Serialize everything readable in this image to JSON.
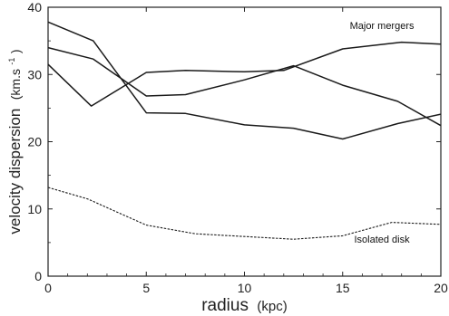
{
  "chart_data": {
    "type": "line",
    "xlabel": "radius",
    "xlabel_unit": "(kpc)",
    "ylabel": "velocity dispersion",
    "ylabel_unit_pre": "(km.s",
    "ylabel_unit_sup": "-1",
    "ylabel_unit_post": ")",
    "xlim": [
      0,
      20
    ],
    "ylim": [
      0,
      40
    ],
    "xticks": [
      0,
      5,
      10,
      15,
      20
    ],
    "yticks": [
      0,
      10,
      20,
      30,
      40
    ],
    "grid": false,
    "annotations": [
      {
        "text": "Major mergers",
        "x": 17,
        "y": 36.8
      },
      {
        "text": "Isolated disk",
        "x": 17,
        "y": 5
      }
    ],
    "series": [
      {
        "style": "solid",
        "x": [
          0,
          2.3,
          5,
          7,
          10,
          12.5,
          15,
          17.8,
          20
        ],
        "y": [
          37.8,
          35.0,
          24.3,
          24.2,
          22.5,
          22.0,
          20.4,
          22.7,
          24.1
        ]
      },
      {
        "style": "solid",
        "x": [
          0,
          2.3,
          5,
          7,
          10,
          12.5,
          15,
          17.8,
          20
        ],
        "y": [
          34.0,
          32.3,
          26.8,
          27.0,
          29.2,
          31.3,
          28.4,
          26.0,
          22.4
        ]
      },
      {
        "style": "solid",
        "x": [
          0,
          2.2,
          5,
          7,
          10,
          12,
          15,
          18,
          20
        ],
        "y": [
          31.5,
          25.3,
          30.3,
          30.6,
          30.4,
          30.6,
          33.8,
          34.8,
          34.5
        ]
      },
      {
        "style": "dashed",
        "x": [
          0,
          2,
          5,
          7.5,
          10,
          12.5,
          15,
          17.5,
          20
        ],
        "y": [
          13.2,
          11.5,
          7.6,
          6.3,
          5.9,
          5.5,
          6.0,
          8.0,
          7.7
        ]
      }
    ]
  }
}
